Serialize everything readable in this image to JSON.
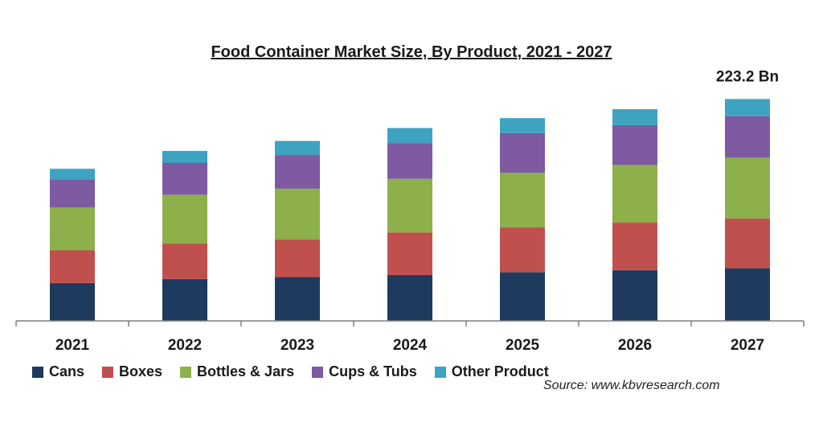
{
  "chart_data": {
    "type": "bar",
    "stacked": true,
    "title": "Food Container Market Size, By Product, 2021 - 2027",
    "categories": [
      "2021",
      "2022",
      "2023",
      "2024",
      "2025",
      "2026",
      "2027"
    ],
    "series": [
      {
        "name": "Cans",
        "color": "#1f3a5f",
        "values": [
          38,
          42,
          44,
          46,
          49,
          51,
          53
        ]
      },
      {
        "name": "Boxes",
        "color": "#c0504d",
        "values": [
          33,
          36,
          38,
          43,
          45,
          48,
          50
        ]
      },
      {
        "name": "Bottles & Jars",
        "color": "#8db04b",
        "values": [
          43,
          49,
          51,
          54,
          55,
          58,
          61
        ]
      },
      {
        "name": "Cups & Tubs",
        "color": "#7e5aa2",
        "values": [
          28,
          32,
          34,
          36,
          40,
          40,
          42
        ]
      },
      {
        "name": "Other Product",
        "color": "#3ea3c1",
        "values": [
          11,
          12,
          14,
          15,
          15,
          16,
          17.2
        ]
      }
    ],
    "annotations": [
      {
        "category": "2027",
        "text": "223.2 Bn"
      }
    ],
    "ylim": [
      0,
      230
    ],
    "grid": false,
    "legend_position": "bottom-left",
    "source": "Source: www.kbvresearch.com"
  }
}
